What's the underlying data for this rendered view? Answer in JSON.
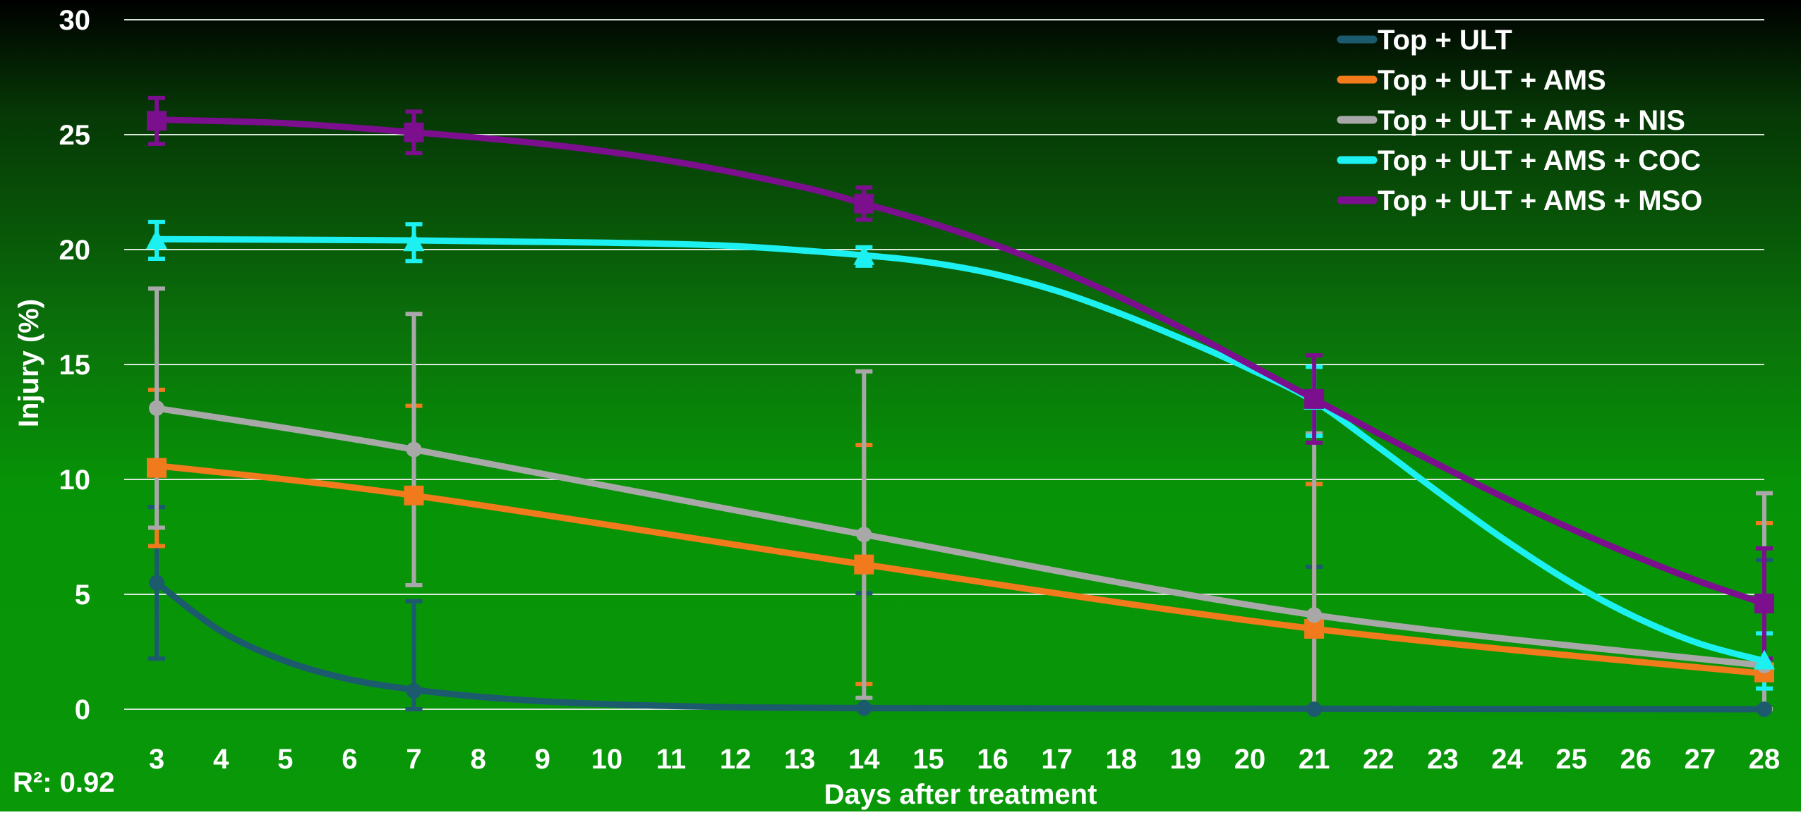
{
  "chart_data": {
    "type": "line",
    "title": "",
    "xlabel": "Days after treatment",
    "ylabel": "Injury (%)",
    "xlim": [
      3,
      28
    ],
    "ylim": [
      0,
      30
    ],
    "xticks": [
      3,
      4,
      5,
      6,
      7,
      8,
      9,
      10,
      11,
      12,
      13,
      14,
      15,
      16,
      17,
      18,
      19,
      20,
      21,
      22,
      23,
      24,
      25,
      26,
      27,
      28
    ],
    "yticks": [
      0,
      5,
      10,
      15,
      20,
      25,
      30
    ],
    "grid": "horizontal",
    "legend_position": "top-right",
    "annotation": "R²: 0.92",
    "measured_x": [
      3,
      7,
      14,
      21,
      28
    ],
    "series": [
      {
        "name": "Top + ULT",
        "color": "#1c5a6e",
        "marker": "circle",
        "points": [
          5.5,
          0.8,
          0.05,
          0.0,
          0.0
        ],
        "error": [
          3.3,
          3.9,
          5.0,
          6.2,
          6.5
        ],
        "curve": [
          [
            3,
            5.5
          ],
          [
            4,
            3.4
          ],
          [
            5,
            2.1
          ],
          [
            6,
            1.3
          ],
          [
            7,
            0.85
          ],
          [
            8,
            0.55
          ],
          [
            9,
            0.35
          ],
          [
            10,
            0.22
          ],
          [
            11,
            0.14
          ],
          [
            12,
            0.09
          ],
          [
            14,
            0.05
          ],
          [
            21,
            0.02
          ],
          [
            28,
            0.0
          ]
        ]
      },
      {
        "name": "Top + ULT + AMS",
        "color": "#f07a1c",
        "marker": "square",
        "points": [
          10.5,
          9.3,
          6.3,
          3.5,
          1.6
        ],
        "error": [
          3.4,
          3.9,
          5.2,
          6.3,
          6.5
        ],
        "curve": [
          [
            3,
            10.6
          ],
          [
            7,
            9.3
          ],
          [
            14,
            6.3
          ],
          [
            21,
            3.5
          ],
          [
            28,
            1.55
          ]
        ]
      },
      {
        "name": "Top + ULT + AMS + NIS",
        "color": "#a8a8a8",
        "marker": "circle",
        "points": [
          13.1,
          11.3,
          7.6,
          4.1,
          1.9
        ],
        "error": [
          5.2,
          5.9,
          7.1,
          7.9,
          7.5
        ],
        "curve": [
          [
            3,
            13.1
          ],
          [
            7,
            11.3
          ],
          [
            14,
            7.6
          ],
          [
            21,
            4.1
          ],
          [
            28,
            1.9
          ]
        ]
      },
      {
        "name": "Top + ULT + AMS + COC",
        "color": "#1df0f0",
        "marker": "triangle",
        "points": [
          20.4,
          20.3,
          19.7,
          13.4,
          2.1
        ],
        "error": [
          0.8,
          0.8,
          0.4,
          1.5,
          1.2
        ],
        "curve": [
          [
            3,
            20.45
          ],
          [
            7,
            20.4
          ],
          [
            10,
            20.3
          ],
          [
            12,
            20.15
          ],
          [
            14,
            19.75
          ],
          [
            15,
            19.45
          ],
          [
            16,
            18.95
          ],
          [
            17,
            18.2
          ],
          [
            18,
            17.2
          ],
          [
            19,
            16.05
          ],
          [
            20,
            14.8
          ],
          [
            21,
            13.4
          ],
          [
            22,
            11.4
          ],
          [
            23,
            9.3
          ],
          [
            24,
            7.3
          ],
          [
            25,
            5.5
          ],
          [
            26,
            4.0
          ],
          [
            27,
            2.85
          ],
          [
            28,
            2.1
          ]
        ]
      },
      {
        "name": "Top + ULT + AMS + MSO",
        "color": "#7b0f8e",
        "marker": "square",
        "points": [
          25.6,
          25.1,
          22.0,
          13.5,
          4.6
        ],
        "error": [
          1.0,
          0.9,
          0.7,
          1.9,
          2.4
        ],
        "curve": [
          [
            3,
            25.65
          ],
          [
            5,
            25.5
          ],
          [
            7,
            25.1
          ],
          [
            9,
            24.6
          ],
          [
            11,
            23.85
          ],
          [
            13,
            22.75
          ],
          [
            14,
            22.0
          ],
          [
            15,
            21.2
          ],
          [
            16,
            20.25
          ],
          [
            17,
            19.15
          ],
          [
            18,
            17.9
          ],
          [
            19,
            16.5
          ],
          [
            20,
            15.0
          ],
          [
            21,
            13.5
          ],
          [
            22,
            12.0
          ],
          [
            23,
            10.55
          ],
          [
            24,
            9.15
          ],
          [
            25,
            7.85
          ],
          [
            26,
            6.65
          ],
          [
            27,
            5.55
          ],
          [
            28,
            4.6
          ]
        ]
      }
    ]
  }
}
